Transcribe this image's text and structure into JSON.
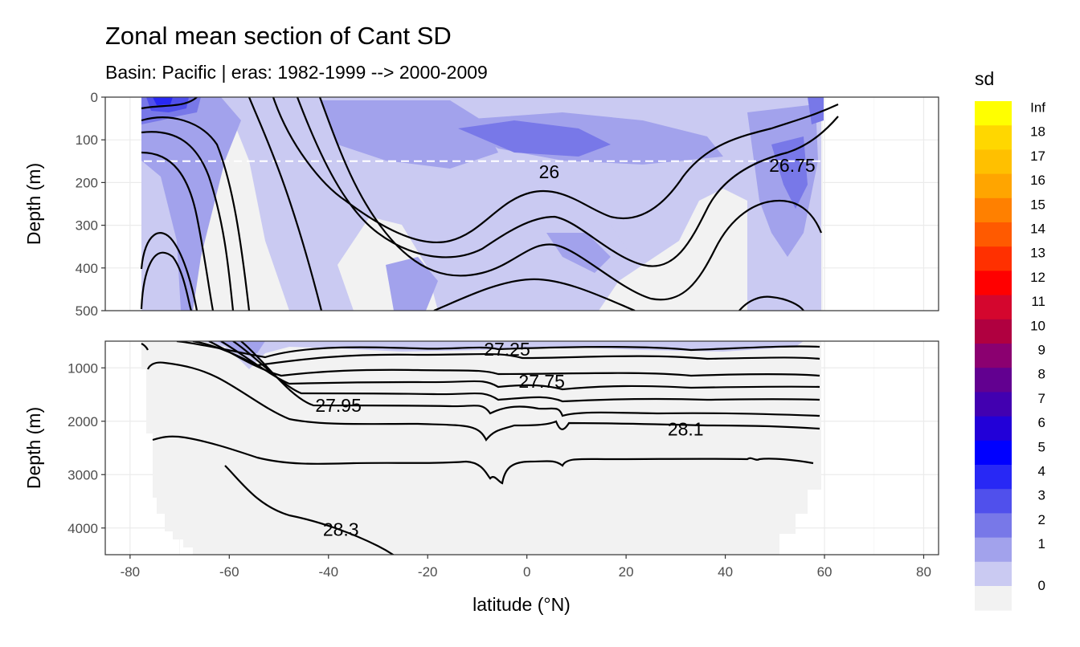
{
  "chart_data": {
    "type": "heatmap",
    "title": "Zonal mean section of Cant SD",
    "subtitle": "Basin: Pacific | eras: 1982-1999 --> 2000-2009",
    "xlabel": "latitude (°N)",
    "ylabel_top": "Depth (m)",
    "ylabel_bottom": "Depth (m)",
    "x_ticks": [
      "-80",
      "-60",
      "-40",
      "-20",
      "0",
      "20",
      "40",
      "60",
      "80"
    ],
    "x_tick_values": [
      -80,
      -60,
      -40,
      -20,
      0,
      20,
      40,
      60,
      80
    ],
    "xlim": [
      -85,
      83
    ],
    "top_panel": {
      "ylim": [
        0,
        500
      ],
      "y_ticks": [
        "0",
        "100",
        "200",
        "300",
        "400",
        "500"
      ],
      "y_tick_values": [
        0,
        100,
        200,
        300,
        400,
        500
      ],
      "reference_line_depth": 150,
      "contour_labels": [
        {
          "text": "26",
          "lat": 4.5,
          "depth": 175
        },
        {
          "text": "26.75",
          "lat": 53.5,
          "depth": 160
        }
      ]
    },
    "bottom_panel": {
      "ylim": [
        500,
        4500
      ],
      "y_ticks": [
        "1000",
        "2000",
        "3000",
        "4000"
      ],
      "y_tick_values": [
        1000,
        2000,
        3000,
        4000
      ],
      "contour_labels": [
        {
          "text": "27.25",
          "lat": -4,
          "depth": 650
        },
        {
          "text": "27.75",
          "lat": 3,
          "depth": 1250
        },
        {
          "text": "27.95",
          "lat": -38,
          "depth": 1700
        },
        {
          "text": "28.1",
          "lat": 32,
          "depth": 2150
        },
        {
          "text": "28.3",
          "lat": -37.5,
          "depth": 4030
        }
      ]
    },
    "legend": {
      "title": "sd",
      "placement": "right",
      "labels": [
        "Inf",
        "18",
        "17",
        "16",
        "15",
        "14",
        "13",
        "12",
        "11",
        "10",
        "9",
        "8",
        "7",
        "6",
        "5",
        "4",
        "3",
        "2",
        "1",
        "0"
      ],
      "colors": [
        "#FFFF00",
        "#FFD700",
        "#FFC000",
        "#FFA500",
        "#FF8000",
        "#FF5A00",
        "#FF3000",
        "#FF0000",
        "#D4062E",
        "#B00040",
        "#8B0070",
        "#620090",
        "#4200B0",
        "#2200D8",
        "#0000FF",
        "#2828F5",
        "#5050EC",
        "#7878E8",
        "#A2A2EC",
        "#CACAF2",
        "#F2F2F2"
      ]
    }
  }
}
